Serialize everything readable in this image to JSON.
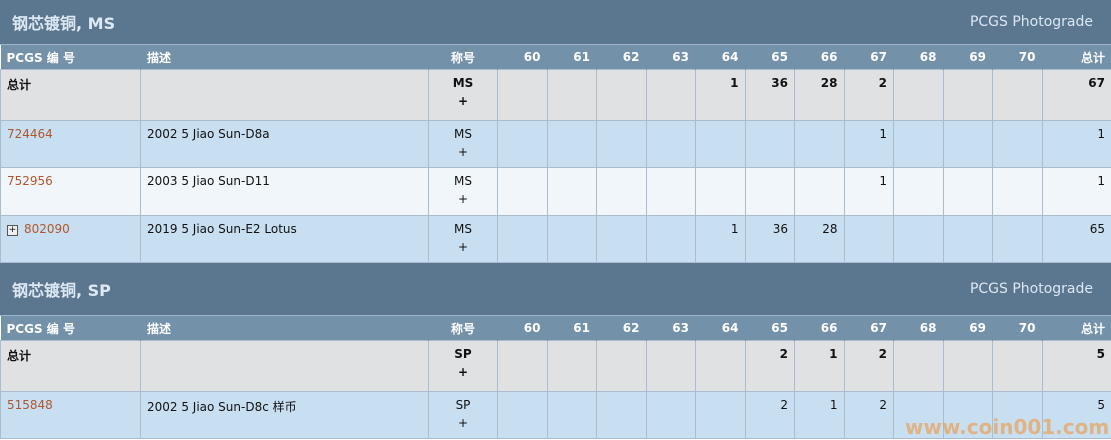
{
  "columns": {
    "pcgs": "PCGS 编 号",
    "desc": "描述",
    "designation": "称号",
    "grades": [
      "60",
      "61",
      "62",
      "63",
      "64",
      "65",
      "66",
      "67",
      "68",
      "69",
      "70"
    ],
    "total": "总计"
  },
  "sections": [
    {
      "title": "钢芯镀铜, MS",
      "photograde": "PCGS Photograde",
      "total_row": {
        "label": "总计",
        "designation": "MS",
        "plus": "+",
        "counts": [
          "",
          "",
          "",
          "",
          "1",
          "36",
          "28",
          "2",
          "",
          "",
          ""
        ],
        "total": "67"
      },
      "rows": [
        {
          "pcgs": "724464",
          "expandable": false,
          "desc": "2002 5 Jiao Sun-D8a",
          "designation": "MS",
          "plus": "+",
          "counts": [
            "",
            "",
            "",
            "",
            "",
            "",
            "",
            "1",
            "",
            "",
            ""
          ],
          "total": "1"
        },
        {
          "pcgs": "752956",
          "expandable": false,
          "desc": "2003 5 Jiao Sun-D11",
          "designation": "MS",
          "plus": "+",
          "counts": [
            "",
            "",
            "",
            "",
            "",
            "",
            "",
            "1",
            "",
            "",
            ""
          ],
          "total": "1"
        },
        {
          "pcgs": "802090",
          "expandable": true,
          "desc": "2019 5 Jiao Sun-E2 Lotus",
          "designation": "MS",
          "plus": "+",
          "counts": [
            "",
            "",
            "",
            "",
            "1",
            "36",
            "28",
            "",
            "",
            "",
            ""
          ],
          "total": "65"
        }
      ]
    },
    {
      "title": "钢芯镀铜, SP",
      "photograde": "PCGS Photograde",
      "total_row": {
        "label": "总计",
        "designation": "SP",
        "plus": "+",
        "counts": [
          "",
          "",
          "",
          "",
          "",
          "2",
          "1",
          "2",
          "",
          "",
          ""
        ],
        "total": "5"
      },
      "rows": [
        {
          "pcgs": "515848",
          "expandable": false,
          "desc": "2002 5 Jiao Sun-D8c 样币",
          "designation": "SP",
          "plus": "+",
          "counts": [
            "",
            "",
            "",
            "",
            "",
            "2",
            "1",
            "2",
            "",
            "",
            ""
          ],
          "total": "5"
        }
      ]
    }
  ],
  "watermark": "www.coin001.com",
  "colors": {
    "title_bar": "#5b768f",
    "header": "#7491aa",
    "total_row": "#e0e1e3",
    "row_blue": "#c8dff2",
    "row_light": "#f1f6fb",
    "link": "#b0562c"
  }
}
